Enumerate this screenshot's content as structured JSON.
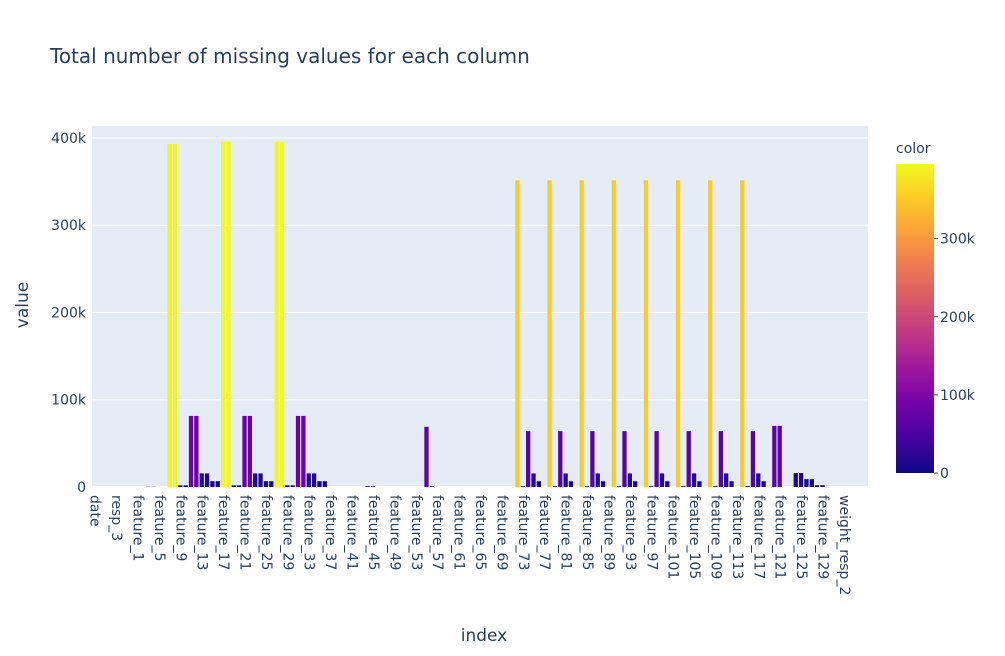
{
  "chart_data": {
    "type": "bar",
    "title": "Total number of missing values for each column",
    "x_label": "index",
    "y_label": "value",
    "colorbar_title": "color",
    "categories": [
      "date",
      null,
      null,
      null,
      "resp_3",
      null,
      null,
      null,
      "feature_1",
      null,
      null,
      null,
      "feature_5",
      null,
      null,
      null,
      "feature_9",
      null,
      null,
      null,
      "feature_13",
      null,
      null,
      null,
      "feature_17",
      null,
      null,
      null,
      "feature_21",
      null,
      null,
      null,
      "feature_25",
      null,
      null,
      null,
      "feature_29",
      null,
      null,
      null,
      "feature_33",
      null,
      null,
      null,
      "feature_37",
      null,
      null,
      null,
      "feature_41",
      null,
      null,
      null,
      "feature_45",
      null,
      null,
      null,
      "feature_49",
      null,
      null,
      null,
      "feature_53",
      null,
      null,
      null,
      "feature_57",
      null,
      null,
      null,
      "feature_61",
      null,
      null,
      null,
      "feature_65",
      null,
      null,
      null,
      "feature_69",
      null,
      null,
      null,
      "feature_73",
      null,
      null,
      null,
      "feature_77",
      null,
      null,
      null,
      "feature_81",
      null,
      null,
      null,
      "feature_85",
      null,
      null,
      null,
      "feature_89",
      null,
      null,
      null,
      "feature_93",
      null,
      null,
      null,
      "feature_97",
      null,
      null,
      null,
      "feature_101",
      null,
      null,
      null,
      "feature_105",
      null,
      null,
      null,
      "feature_109",
      null,
      null,
      null,
      "feature_113",
      null,
      null,
      null,
      "feature_117",
      null,
      null,
      null,
      "feature_121",
      null,
      null,
      null,
      "feature_125",
      null,
      null,
      null,
      "feature_129",
      null,
      null,
      null,
      "weight_resp_2",
      null,
      null,
      null,
      null
    ],
    "values": [
      0,
      0,
      0,
      0,
      0,
      0,
      0,
      0,
      0,
      0,
      297,
      297,
      0,
      0,
      393135,
      393135,
      1921,
      1921,
      81444,
      81444,
      15570,
      15570,
      6683,
      6683,
      395535,
      395535,
      1921,
      1921,
      81444,
      81444,
      15570,
      15570,
      6683,
      6683,
      395535,
      395535,
      1921,
      1921,
      81444,
      81444,
      15570,
      15570,
      6683,
      6683,
      0,
      0,
      0,
      0,
      0,
      0,
      0,
      1000,
      1000,
      0,
      0,
      0,
      0,
      0,
      0,
      0,
      0,
      0,
      69000,
      1000,
      0,
      0,
      0,
      0,
      0,
      0,
      0,
      0,
      0,
      0,
      0,
      0,
      0,
      0,
      0,
      351426,
      1000,
      64000,
      15570,
      6683,
      0,
      351426,
      1000,
      64000,
      15570,
      6683,
      0,
      351426,
      1000,
      64000,
      15570,
      6683,
      0,
      351426,
      1000,
      64000,
      15570,
      6683,
      0,
      351426,
      1000,
      64000,
      15570,
      6683,
      0,
      351426,
      1000,
      64000,
      15570,
      6683,
      0,
      351426,
      1000,
      64000,
      15570,
      6683,
      0,
      351426,
      1000,
      64000,
      15570,
      6683,
      0,
      70000,
      70000,
      0,
      0,
      16000,
      16000,
      9000,
      9000,
      2000,
      2000,
      0,
      0,
      0,
      0,
      0,
      0,
      0,
      0
    ],
    "ylim": [
      0,
      413700
    ],
    "yticks": [
      0,
      {
        "value": 100000,
        "label": "100k"
      },
      {
        "value": 200000,
        "label": "200k"
      },
      {
        "value": 300000,
        "label": "300k"
      },
      {
        "value": 400000,
        "label": "400k"
      }
    ],
    "grid": true,
    "colorscale": [
      "#0d0887",
      "#46039f",
      "#7201a8",
      "#9c179e",
      "#bd3786",
      "#d8576b",
      "#ed7953",
      "#fb9f3a",
      "#fdca26",
      "#f0f921"
    ],
    "color_range": [
      0,
      395535
    ],
    "color_ticks": [
      0,
      {
        "value": 100000,
        "label": "100k"
      },
      {
        "value": 200000,
        "label": "200k"
      },
      {
        "value": 300000,
        "label": "300k"
      }
    ]
  }
}
